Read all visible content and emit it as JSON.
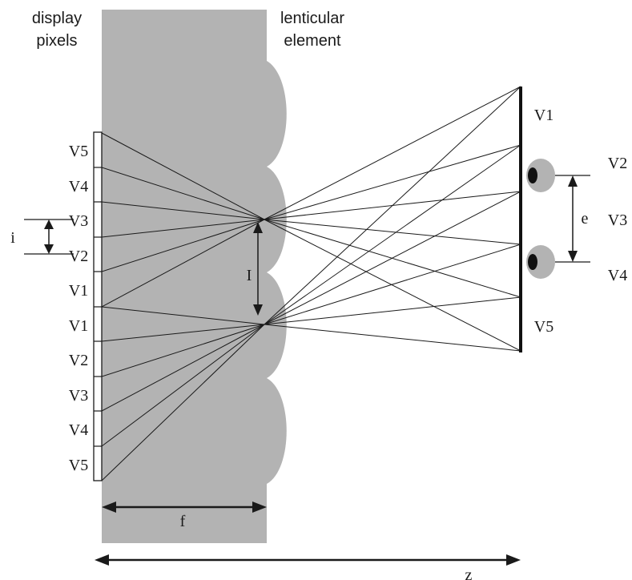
{
  "headers": {
    "display_line1": "display",
    "display_line2": "pixels",
    "lens_line1": "lenticular",
    "lens_line2": "element"
  },
  "pixel_labels_upper": [
    "V5",
    "V4",
    "V3",
    "V2",
    "V1"
  ],
  "pixel_labels_lower": [
    "V1",
    "V2",
    "V3",
    "V4",
    "V5"
  ],
  "viewing_labels_screen": [
    "V1",
    "V5"
  ],
  "viewing_labels_right": [
    "V2",
    "V3",
    "V4"
  ],
  "dimensions": {
    "pixel_pitch": "i",
    "lens_pitch": "I",
    "focal_length": "f",
    "eye_separation": "e",
    "viewing_distance": "z"
  },
  "colors": {
    "substrate": "#b3b3b3",
    "face": "#b3b3b3",
    "pupil": "#111111",
    "lines": "#1a1a1a"
  }
}
